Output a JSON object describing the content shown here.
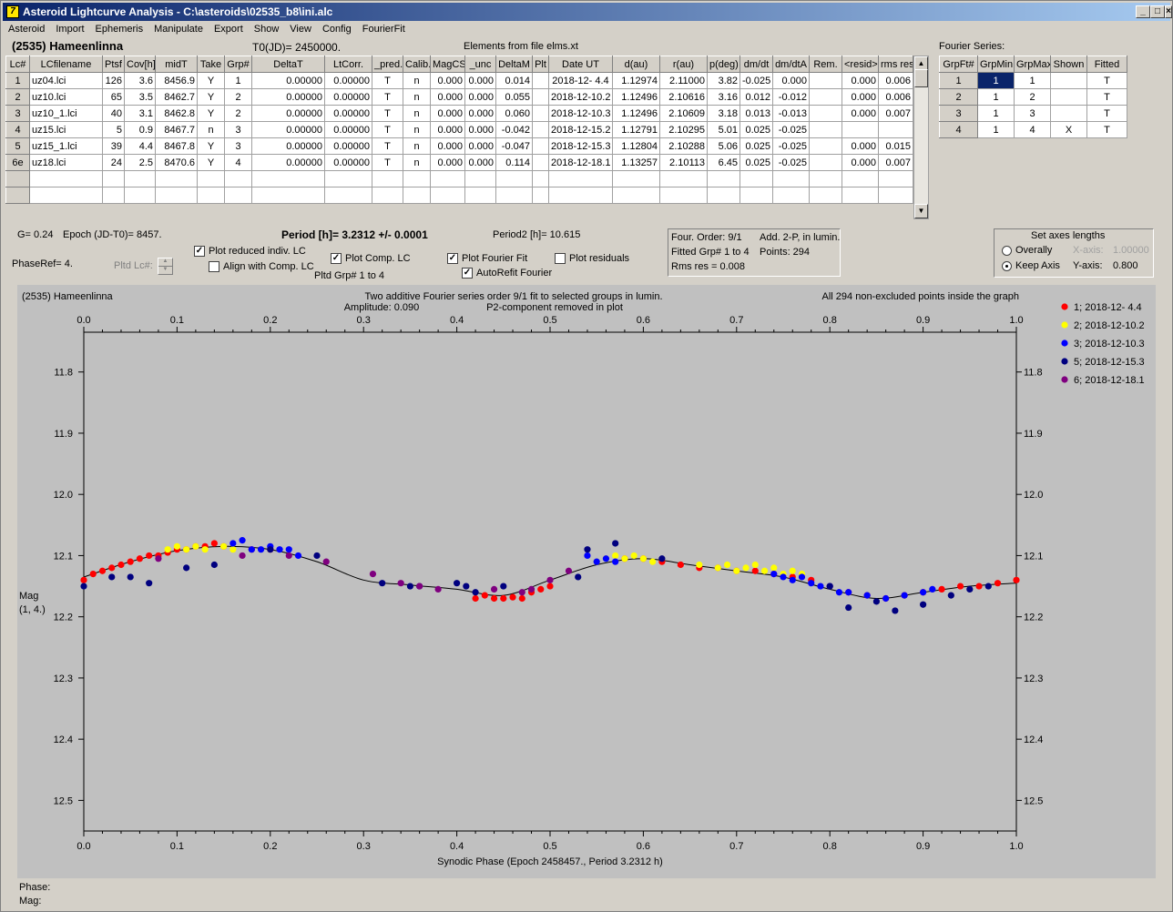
{
  "window": {
    "title": "Asteroid Lightcurve Analysis - C:\\asteroids\\02535_b8\\ini.alc",
    "icon": "application-icon"
  },
  "menu": [
    "Asteroid",
    "Import",
    "Ephemeris",
    "Manipulate",
    "Export",
    "Show",
    "View",
    "Config",
    "FourierFit"
  ],
  "header": {
    "object": "(2535) Hameenlinna",
    "t0": "T0(JD)= 2450000.",
    "elements": "Elements from file elms.xt",
    "fourier_label": "Fourier Series:"
  },
  "lc_table": {
    "columns": [
      "Lc#",
      "LCfilename",
      "Ptsf",
      "Cov[h]",
      "midT",
      "Take",
      "Grp#",
      "DeltaT",
      "LtCorr.",
      "_pred.",
      "Calib.",
      "MagCS",
      "_unc",
      "DeltaM",
      "Plt",
      "Date UT",
      "d(au)",
      "r(au)",
      "p(deg)",
      "dm/dt",
      "dm/dtA",
      "Rem.",
      "<resid>",
      "rms res"
    ],
    "rows": [
      [
        "1",
        "uz04.lci",
        "126",
        "3.6",
        "8456.9",
        "Y",
        "1",
        "0.00000",
        "0.00000",
        "T",
        "n",
        "0.000",
        "0.000",
        "0.014",
        "",
        "2018-12- 4.4",
        "1.12974",
        "2.11000",
        "3.82",
        "-0.025",
        "0.000",
        "",
        "0.000",
        "0.006"
      ],
      [
        "2",
        "uz10.lci",
        "65",
        "3.5",
        "8462.7",
        "Y",
        "2",
        "0.00000",
        "0.00000",
        "T",
        "n",
        "0.000",
        "0.000",
        "0.055",
        "",
        "2018-12-10.2",
        "1.12496",
        "2.10616",
        "3.16",
        "0.012",
        "-0.012",
        "",
        "0.000",
        "0.006"
      ],
      [
        "3",
        "uz10_1.lci",
        "40",
        "3.1",
        "8462.8",
        "Y",
        "2",
        "0.00000",
        "0.00000",
        "T",
        "n",
        "0.000",
        "0.000",
        "0.060",
        "",
        "2018-12-10.3",
        "1.12496",
        "2.10609",
        "3.18",
        "0.013",
        "-0.013",
        "",
        "0.000",
        "0.007"
      ],
      [
        "4",
        "uz15.lci",
        "5",
        "0.9",
        "8467.7",
        "n",
        "3",
        "0.00000",
        "0.00000",
        "T",
        "n",
        "0.000",
        "0.000",
        "-0.042",
        "",
        "2018-12-15.2",
        "1.12791",
        "2.10295",
        "5.01",
        "0.025",
        "-0.025",
        "",
        "",
        ""
      ],
      [
        "5",
        "uz15_1.lci",
        "39",
        "4.4",
        "8467.8",
        "Y",
        "3",
        "0.00000",
        "0.00000",
        "T",
        "n",
        "0.000",
        "0.000",
        "-0.047",
        "",
        "2018-12-15.3",
        "1.12804",
        "2.10288",
        "5.06",
        "0.025",
        "-0.025",
        "",
        "0.000",
        "0.015"
      ],
      [
        "6e",
        "uz18.lci",
        "24",
        "2.5",
        "8470.6",
        "Y",
        "4",
        "0.00000",
        "0.00000",
        "T",
        "n",
        "0.000",
        "0.000",
        "0.114",
        "",
        "2018-12-18.1",
        "1.13257",
        "2.10113",
        "6.45",
        "0.025",
        "-0.025",
        "",
        "0.000",
        "0.007"
      ]
    ]
  },
  "fourier_table": {
    "columns": [
      "GrpFt#",
      "GrpMin",
      "GrpMax",
      "Shown",
      "Fitted"
    ],
    "rows": [
      [
        "1",
        "1",
        "1",
        "",
        "T"
      ],
      [
        "2",
        "1",
        "2",
        "",
        "T"
      ],
      [
        "3",
        "1",
        "3",
        "",
        "T"
      ],
      [
        "4",
        "1",
        "4",
        "X",
        "T"
      ]
    ]
  },
  "controls": {
    "g": "G= 0.24",
    "epoch": "Epoch (JD-T0)= 8457.",
    "period": "Period [h]= 3.2312 +/- 0.0001",
    "period2": "Period2 [h]= 10.615",
    "phaseref": "PhaseRef= 4.",
    "pltd_lc": "Pltd Lc#:",
    "pltd_grp": "Pltd Grp#  1   to   4",
    "plot_reduced": "Plot reduced indiv. LC",
    "align": "Align with Comp. LC",
    "plot_comp": "Plot Comp. LC",
    "plot_fourier": "Plot Fourier Fit",
    "autorefit": "AutoRefit Fourier",
    "plot_resid": "Plot residuals",
    "four_order": "Four. Order:  9/1",
    "add2p": "Add. 2-P, in lumin.",
    "fitted_grp": "Fitted Grp# 1 to 4",
    "points": "Points: 294",
    "rms": "Rms res      = 0.008",
    "axes_title": "Set axes lengths",
    "overally": "Overally",
    "keep_axis": "Keep Axis",
    "xaxis_label": "X-axis:",
    "xaxis_val": "1.00000",
    "yaxis_label": "Y-axis:",
    "yaxis_val": "0.800"
  },
  "plot": {
    "title_left": "(2535) Hameenlinna",
    "title_center": "Two additive Fourier series order 9/1 fit to selected groups in lumin.",
    "amplitude": "Amplitude: 0.090",
    "p2note": "P2-component removed in plot",
    "title_right": "All 294 non-excluded points inside the graph",
    "ylabel1": "Mag",
    "ylabel2": "(1, 4.)",
    "xlabel": "Synodic Phase (Epoch 2458457., Period 3.2312 h)",
    "phase_label": "Phase:",
    "mag_label": "Mag:"
  },
  "chart_data": {
    "type": "scatter",
    "xlabel": "Synodic Phase (Epoch 2458457., Period 3.2312 h)",
    "ylabel": "Mag (1, 4.)",
    "xlim": [
      0,
      1
    ],
    "ylim": [
      12.55,
      11.735
    ],
    "xticks": [
      "0.0",
      "0.1",
      "0.2",
      "0.3",
      "0.4",
      "0.5",
      "0.6",
      "0.7",
      "0.8",
      "0.9",
      "1.0"
    ],
    "yticks": [
      "11.8",
      "11.9",
      "12.0",
      "12.1",
      "12.2",
      "12.3",
      "12.4",
      "12.5"
    ],
    "fit_curve": {
      "x": [
        0,
        0.05,
        0.1,
        0.15,
        0.2,
        0.25,
        0.3,
        0.35,
        0.4,
        0.45,
        0.5,
        0.55,
        0.6,
        0.65,
        0.7,
        0.75,
        0.8,
        0.85,
        0.9,
        0.95,
        1.0
      ],
      "y": [
        12.135,
        12.11,
        12.092,
        12.085,
        12.09,
        12.11,
        12.14,
        12.148,
        12.155,
        12.165,
        12.14,
        12.115,
        12.105,
        12.115,
        12.125,
        12.135,
        12.155,
        12.17,
        12.16,
        12.15,
        12.145
      ]
    },
    "series": [
      {
        "name": "1; 2018-12- 4.4",
        "color": "#ff0000",
        "x": [
          0.0,
          0.01,
          0.02,
          0.03,
          0.04,
          0.05,
          0.06,
          0.07,
          0.08,
          0.09,
          0.1,
          0.11,
          0.12,
          0.13,
          0.14,
          0.15,
          0.18,
          0.2,
          0.42,
          0.43,
          0.44,
          0.45,
          0.46,
          0.47,
          0.48,
          0.49,
          0.5,
          0.58,
          0.6,
          0.62,
          0.64,
          0.66,
          0.68,
          0.7,
          0.72,
          0.74,
          0.76,
          0.78,
          0.8,
          0.82,
          0.84,
          0.86,
          0.88,
          0.9,
          0.92,
          0.94,
          0.96,
          0.98,
          1.0
        ],
        "y": [
          12.14,
          12.13,
          12.125,
          12.12,
          12.115,
          12.11,
          12.105,
          12.1,
          12.1,
          12.095,
          12.09,
          12.09,
          12.085,
          12.085,
          12.08,
          12.085,
          12.09,
          12.09,
          12.17,
          12.165,
          12.17,
          12.17,
          12.168,
          12.17,
          12.16,
          12.155,
          12.15,
          12.105,
          12.105,
          12.11,
          12.115,
          12.12,
          12.12,
          12.125,
          12.125,
          12.13,
          12.135,
          12.14,
          12.15,
          12.16,
          12.165,
          12.17,
          12.165,
          12.16,
          12.155,
          12.15,
          12.15,
          12.145,
          12.14
        ]
      },
      {
        "name": "2; 2018-12-10.2",
        "color": "#ffff00",
        "x": [
          0.09,
          0.1,
          0.11,
          0.12,
          0.13,
          0.15,
          0.16,
          0.55,
          0.56,
          0.57,
          0.58,
          0.59,
          0.6,
          0.61,
          0.66,
          0.68,
          0.69,
          0.7,
          0.71,
          0.72,
          0.73,
          0.74,
          0.75,
          0.76,
          0.77
        ],
        "y": [
          12.09,
          12.085,
          12.09,
          12.085,
          12.09,
          12.085,
          12.09,
          12.11,
          12.105,
          12.1,
          12.105,
          12.1,
          12.105,
          12.11,
          12.115,
          12.12,
          12.115,
          12.125,
          12.12,
          12.115,
          12.125,
          12.12,
          12.13,
          12.125,
          12.13
        ]
      },
      {
        "name": "3; 2018-12-10.3",
        "color": "#0000ff",
        "x": [
          0.16,
          0.17,
          0.18,
          0.19,
          0.2,
          0.21,
          0.22,
          0.23,
          0.54,
          0.55,
          0.56,
          0.57,
          0.74,
          0.75,
          0.76,
          0.77,
          0.78,
          0.79,
          0.8,
          0.81,
          0.82,
          0.84,
          0.86,
          0.88,
          0.9,
          0.91
        ],
        "y": [
          12.08,
          12.075,
          12.09,
          12.09,
          12.085,
          12.09,
          12.09,
          12.1,
          12.1,
          12.11,
          12.105,
          12.11,
          12.13,
          12.135,
          12.14,
          12.135,
          12.145,
          12.15,
          12.15,
          12.16,
          12.16,
          12.165,
          12.17,
          12.165,
          12.16,
          12.155
        ]
      },
      {
        "name": "5; 2018-12-15.3",
        "color": "#00007f",
        "x": [
          0.0,
          0.03,
          0.05,
          0.07,
          0.11,
          0.14,
          0.2,
          0.25,
          0.32,
          0.35,
          0.36,
          0.4,
          0.41,
          0.42,
          0.45,
          0.53,
          0.54,
          0.57,
          0.62,
          0.8,
          0.82,
          0.85,
          0.87,
          0.9,
          0.93,
          0.95,
          0.97
        ],
        "y": [
          12.15,
          12.135,
          12.135,
          12.145,
          12.12,
          12.115,
          12.09,
          12.1,
          12.145,
          12.15,
          12.15,
          12.145,
          12.15,
          12.16,
          12.15,
          12.135,
          12.09,
          12.08,
          12.105,
          12.15,
          12.185,
          12.175,
          12.19,
          12.18,
          12.165,
          12.155,
          12.15
        ]
      },
      {
        "name": "6; 2018-12-18.1",
        "color": "#7f007f",
        "x": [
          0.08,
          0.17,
          0.22,
          0.26,
          0.31,
          0.34,
          0.36,
          0.38,
          0.44,
          0.47,
          0.48,
          0.5,
          0.52
        ],
        "y": [
          12.105,
          12.1,
          12.1,
          12.11,
          12.13,
          12.145,
          12.15,
          12.155,
          12.155,
          12.16,
          12.155,
          12.14,
          12.125
        ]
      }
    ]
  }
}
